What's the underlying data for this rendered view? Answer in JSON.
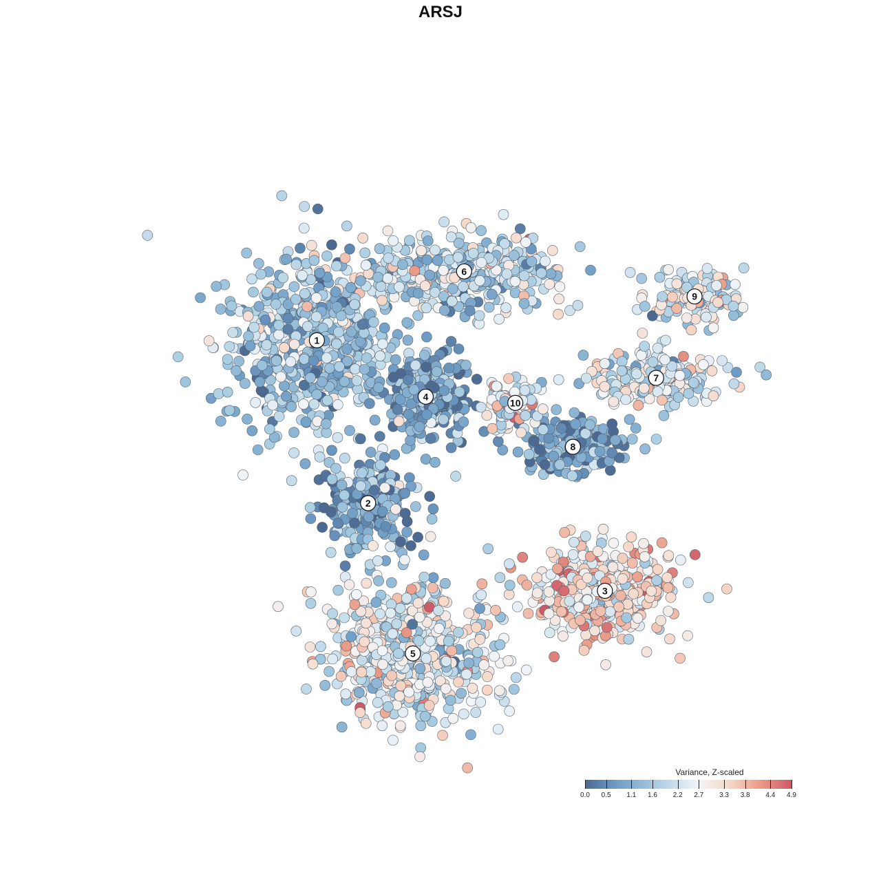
{
  "chart_data": {
    "type": "scatter",
    "title": "ARSJ",
    "color_scale": {
      "title": "Variance, Z-scaled",
      "ticks": [
        "0.0",
        "0.5",
        "1.1",
        "1.6",
        "2.2",
        "2.7",
        "3.3",
        "3.8",
        "4.4",
        "4.9"
      ],
      "min": 0.0,
      "max": 4.9,
      "low_color": "#4b6991",
      "mid_color": "#f2f5f8",
      "high_color": "#cf5866"
    },
    "cluster_labels": [
      "1",
      "2",
      "3",
      "4",
      "5",
      "6",
      "7",
      "8",
      "9",
      "10"
    ],
    "clusters": [
      {
        "label": "1",
        "x": 0.28,
        "y": 0.66,
        "mean_value": 1.6
      },
      {
        "label": "2",
        "x": 0.36,
        "y": 0.4,
        "mean_value": 1.0
      },
      {
        "label": "3",
        "x": 0.73,
        "y": 0.26,
        "mean_value": 3.2
      },
      {
        "label": "4",
        "x": 0.45,
        "y": 0.57,
        "mean_value": 0.9
      },
      {
        "label": "5",
        "x": 0.43,
        "y": 0.16,
        "mean_value": 2.5
      },
      {
        "label": "6",
        "x": 0.51,
        "y": 0.77,
        "mean_value": 2.0
      },
      {
        "label": "7",
        "x": 0.81,
        "y": 0.6,
        "mean_value": 2.4
      },
      {
        "label": "8",
        "x": 0.68,
        "y": 0.49,
        "mean_value": 0.8
      },
      {
        "label": "9",
        "x": 0.87,
        "y": 0.73,
        "mean_value": 2.6
      },
      {
        "label": "10",
        "x": 0.59,
        "y": 0.56,
        "mean_value": 2.7
      }
    ],
    "xlabel": "",
    "ylabel": "",
    "grid": false,
    "legend_position": "bottom-right"
  }
}
